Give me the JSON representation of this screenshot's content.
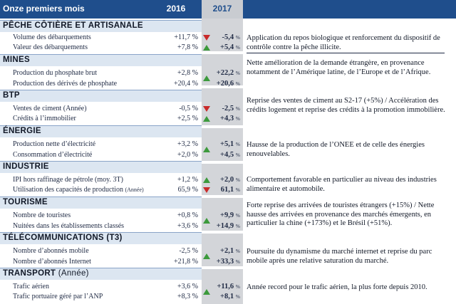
{
  "header": {
    "title": "Onze premiers mois",
    "year_2016": "2016",
    "year_2017": "2017"
  },
  "colors": {
    "header_bg": "#1f4e8c",
    "section_bg": "#dce6f1",
    "column_2017_bg": "#d3d5d9",
    "up_arrow": "#3c9a3c",
    "down_arrow": "#c92a2a"
  },
  "sections": [
    {
      "title": "PÊCHE CÔTIÈRE ET ARTISANALE",
      "subtitle": "",
      "rows": [
        {
          "label": "Volume des débarquements",
          "label_note": "",
          "v2016": "+11,7 %",
          "v2017": "-5,4",
          "dir": "down"
        },
        {
          "label": "Valeur des débarquements",
          "label_note": "",
          "v2016": "+7,8 %",
          "v2017": "+5,4",
          "dir": "up"
        }
      ],
      "comment": "Application du repos biologique et renforcement du dispositif de contrôle contre la pêche illicite."
    },
    {
      "title": "MINES",
      "subtitle": "",
      "rows": [
        {
          "label": "Production du phosphate brut",
          "label_note": "",
          "v2016": "+2,8 %",
          "v2017": "+22,2",
          "dir": "up"
        },
        {
          "label": "Production des dérivés de phosphate",
          "label_note": "",
          "v2016": "+20,4 %",
          "v2017": "+20,6",
          "dir": "up"
        }
      ],
      "comment": "Nette amélioration de la demande étrangère, en provenance notamment de l’Amérique latine, de l’Europe et de l’Afrique."
    },
    {
      "title": "BTP",
      "subtitle": "",
      "rows": [
        {
          "label": "Ventes de ciment (Année)",
          "label_note": "",
          "v2016": "-0,5 %",
          "v2017": "-2,5",
          "dir": "down"
        },
        {
          "label": "Crédits à l’immobilier",
          "label_note": "",
          "v2016": "+2,5 %",
          "v2017": "+4,3",
          "dir": "up"
        }
      ],
      "comment": "Reprise des ventes de ciment au S2-17 (+5%) / Accélération des crédits logement et reprise des crédits à la promotion immobilière."
    },
    {
      "title": "ÉNERGIE",
      "subtitle": "",
      "rows": [
        {
          "label": "Production nette d’électricité",
          "label_note": "",
          "v2016": "+3,2 %",
          "v2017": "+5,1",
          "dir": "up"
        },
        {
          "label": "Consommation d’électricité",
          "label_note": "",
          "v2016": "+2,0 %",
          "v2017": "+4,5",
          "dir": "up"
        }
      ],
      "comment": "Hausse de la production de l’ONEE et de celle des énergies renouvelables."
    },
    {
      "title": "INDUSTRIE",
      "subtitle": "",
      "rows": [
        {
          "label": "IPI hors raffinage de pétrole (moy. 3T)",
          "label_note": "",
          "v2016": "+1,2 %",
          "v2017": "+2,0",
          "dir": "up"
        },
        {
          "label": "Utilisation des capacités de production",
          "label_note": "(Année)",
          "v2016": "65,9 %",
          "v2017": "61,1",
          "dir": "down"
        }
      ],
      "comment": "Comportement favorable en particulier au niveau des industries  alimentaire et automobile."
    },
    {
      "title": "TOURISME",
      "subtitle": "",
      "rows": [
        {
          "label": "Nombre de touristes",
          "label_note": "",
          "v2016": "+0,8 %",
          "v2017": "+9,9",
          "dir": "up"
        },
        {
          "label": "Nuitées dans les établissements classés",
          "label_note": "",
          "v2016": "+3,6 %",
          "v2017": "+14,9",
          "dir": "up"
        }
      ],
      "comment": "Forte reprise des arrivées de touristes étrangers (+15%) / Nette hausse des arrivées en provenance des marchés émergents, en particulier la chine (+173%) et le Brésil (+51%)."
    },
    {
      "title": "TÉLÉCOMMUNICATIONS (T3)",
      "subtitle": "",
      "rows": [
        {
          "label": "Nombre d’abonnés mobile",
          "label_note": "",
          "v2016": "-2,5 %",
          "v2017": "+2,1",
          "dir": "up"
        },
        {
          "label": "Nombre d’abonnés Internet",
          "label_note": "",
          "v2016": "+21,8 %",
          "v2017": "+33,3",
          "dir": "up"
        }
      ],
      "comment": "Poursuite du dynamisme du marché internet et reprise du parc mobile après une relative saturation du marché."
    },
    {
      "title": "TRANSPORT",
      "subtitle": "(Année)",
      "rows": [
        {
          "label": "Trafic aérien",
          "label_note": "",
          "v2016": "+3,6 %",
          "v2017": "+11,6",
          "dir": "up"
        },
        {
          "label": "Trafic portuaire géré par l’ANP",
          "label_note": "",
          "v2016": "+8,3 %",
          "v2017": "+8,1",
          "dir": "up"
        }
      ],
      "comment": "Année record pour le trafic aérien, la plus forte depuis 2010."
    }
  ],
  "pct_symbol": "%"
}
